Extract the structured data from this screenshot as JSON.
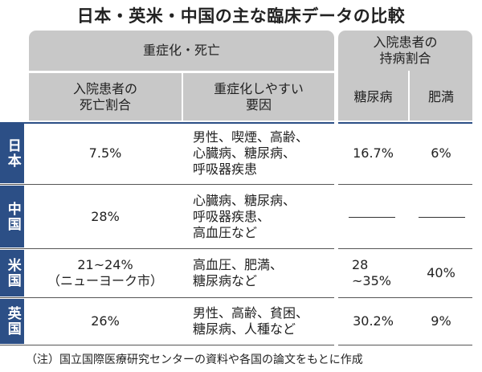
{
  "title": "日本・英米・中国の主な臨床データの比較",
  "header": {
    "group_severe": "重症化・死亡",
    "group_comorbidity": "入院患者の\n持病割合",
    "col_death_rate": "入院患者の\n死亡割合",
    "col_factors": "重症化しやすい\n要因",
    "col_diabetes": "糖尿病",
    "col_obesity": "肥満"
  },
  "rows": [
    {
      "country": "日本",
      "death_rate": "7.5%",
      "factors": "男性、喫煙、高齢、\n心臓病、糖尿病、\n呼吸器疾患",
      "diabetes": "16.7%",
      "obesity": "6%"
    },
    {
      "country": "中国",
      "death_rate": "28%",
      "factors": "心臓病、糖尿病、\n呼吸器疾患、\n高血圧など",
      "diabetes": "",
      "obesity": ""
    },
    {
      "country": "米国",
      "death_rate": "21~24%\n（ニューヨーク市）",
      "factors": "高血圧、肥満、\n糖尿病など",
      "diabetes": "28\n~35%",
      "obesity": "40%"
    },
    {
      "country": "英国",
      "death_rate": "26%",
      "factors": "男性、高齢、貧困、\n糖尿病、人種など",
      "diabetes": "30.2%",
      "obesity": "9%"
    }
  ],
  "footnote": "（注）国立国際医療研究センターの資料や各国の論文をもとに作成"
}
